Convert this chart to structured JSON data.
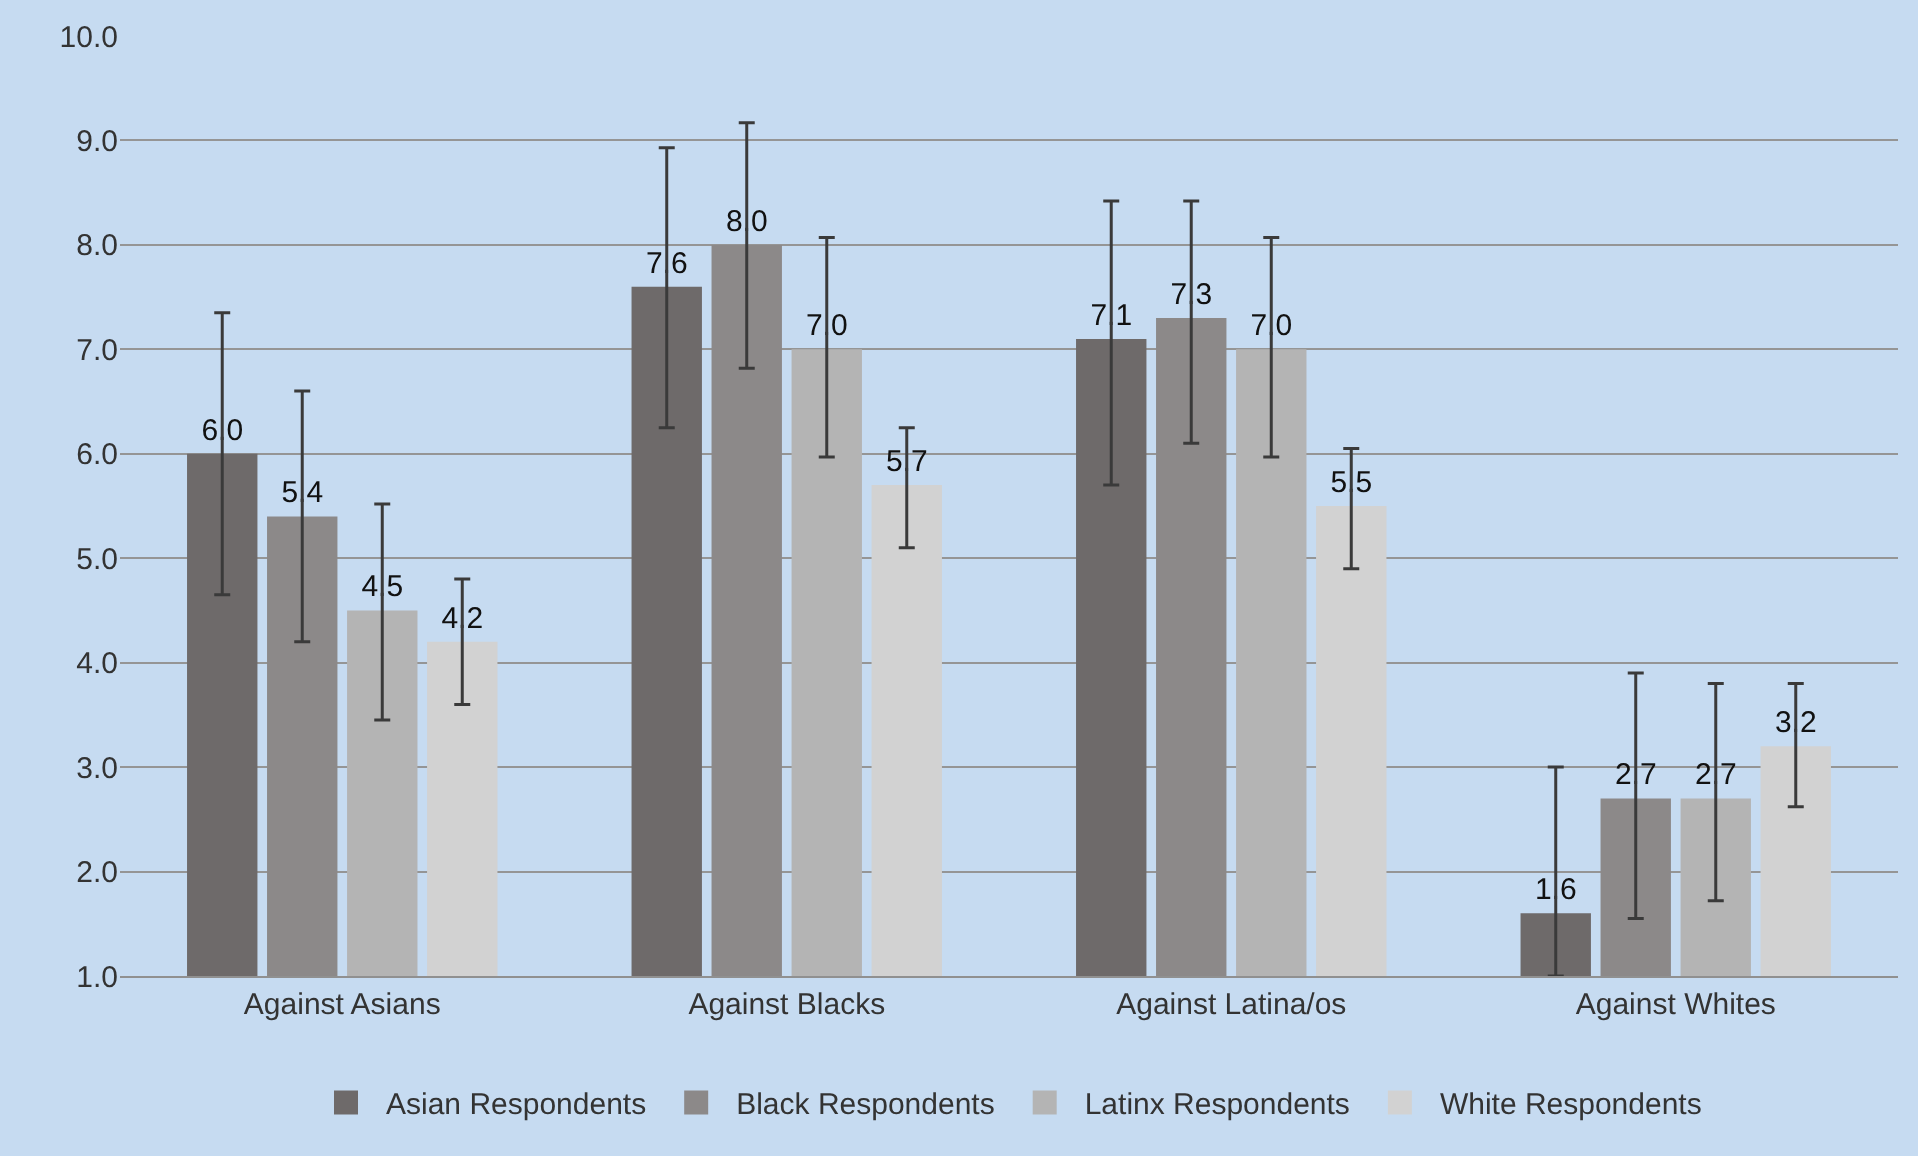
{
  "chart_data": {
    "type": "bar",
    "categories": [
      "Against Asians",
      "Against Blacks",
      "Against Latina/os",
      "Against Whites"
    ],
    "series": [
      {
        "name": "Asian Respondents",
        "color": "#6e6a6a",
        "values": [
          6.0,
          7.6,
          7.1,
          1.6
        ],
        "value_labels": [
          "6.0",
          "7.6",
          "7.1",
          "1.6"
        ],
        "errors": [
          [
            4.65,
            7.35
          ],
          [
            6.25,
            8.93
          ],
          [
            5.7,
            8.42
          ],
          [
            1.0,
            3.0
          ]
        ]
      },
      {
        "name": "Black Respondents",
        "color": "#8c8989",
        "values": [
          5.4,
          8.0,
          7.3,
          2.7
        ],
        "value_labels": [
          "5.4",
          "8.0",
          "7.3",
          "2.7"
        ],
        "errors": [
          [
            4.2,
            6.6
          ],
          [
            6.82,
            9.17
          ],
          [
            6.1,
            8.42
          ],
          [
            1.55,
            3.9
          ]
        ]
      },
      {
        "name": "Latinx Respondents",
        "color": "#b4b4b4",
        "values": [
          4.5,
          7.0,
          7.0,
          2.7
        ],
        "value_labels": [
          "4.5",
          "7.0",
          "7.0",
          "2.7"
        ],
        "errors": [
          [
            3.45,
            5.52
          ],
          [
            5.97,
            8.07
          ],
          [
            5.97,
            8.07
          ],
          [
            1.72,
            3.8
          ]
        ]
      },
      {
        "name": "White Respondents",
        "color": "#d2d2d2",
        "values": [
          4.2,
          5.7,
          5.5,
          3.2
        ],
        "value_labels": [
          "4.2",
          "5.7",
          "5.5",
          "3.2"
        ],
        "errors": [
          [
            3.6,
            4.8
          ],
          [
            5.1,
            6.25
          ],
          [
            4.9,
            6.05
          ],
          [
            2.62,
            3.8
          ]
        ]
      }
    ],
    "ylim": [
      1,
      10
    ],
    "yticks": [
      {
        "value": 1,
        "label": "1.0"
      },
      {
        "value": 2,
        "label": "2.0"
      },
      {
        "value": 3,
        "label": "3.0"
      },
      {
        "value": 4,
        "label": "4.0"
      },
      {
        "value": 5,
        "label": "5.0"
      },
      {
        "value": 6,
        "label": "6.0"
      },
      {
        "value": 7,
        "label": "7.0"
      },
      {
        "value": 8,
        "label": "8.0"
      },
      {
        "value": 9,
        "label": "9.0"
      },
      {
        "value": 10,
        "label": "10.0"
      }
    ],
    "grid": "y",
    "legend": "bottom"
  }
}
